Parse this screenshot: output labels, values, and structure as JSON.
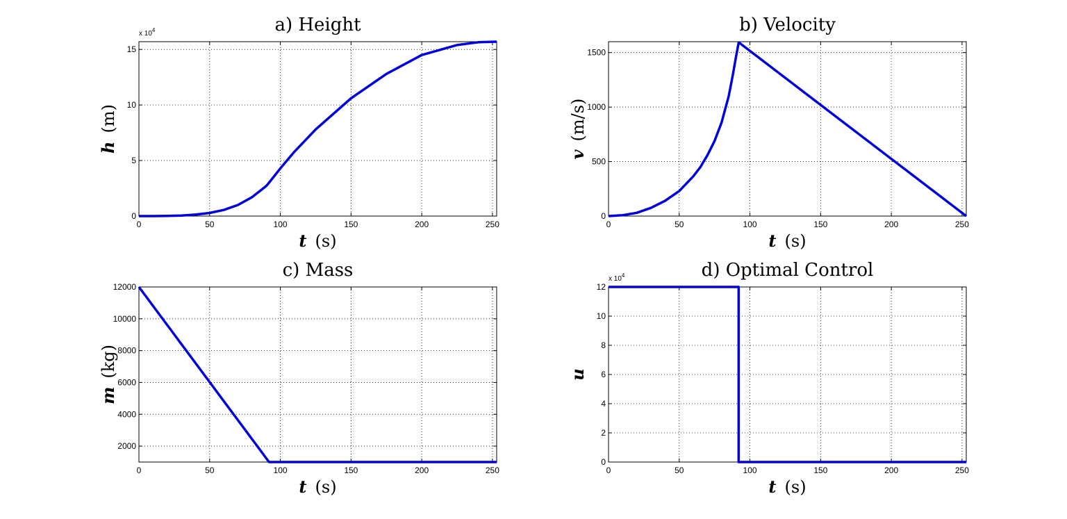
{
  "chart_data": [
    {
      "type": "line",
      "title": "a) Height",
      "xlabel_var": "t",
      "xlabel_unit": "(s)",
      "ylabel_var": "h",
      "ylabel_unit": "(m)",
      "y_exponent": "x 10",
      "y_exponent_power": "4",
      "xlim": [
        0,
        253
      ],
      "ylim": [
        0,
        15.7
      ],
      "xticks": [
        0,
        50,
        100,
        150,
        200,
        250
      ],
      "xtick_labels": [
        "0",
        "50",
        "100",
        "150",
        "200",
        "250"
      ],
      "yticks": [
        0,
        5,
        10,
        15
      ],
      "ytick_labels": [
        "0",
        "5",
        "10",
        "15"
      ],
      "grid": true,
      "color": "#0000dd",
      "series": [
        {
          "x": [
            0,
            10,
            20,
            30,
            40,
            50,
            60,
            70,
            80,
            90,
            92,
            100,
            110,
            125,
            150,
            175,
            200,
            225,
            240,
            253
          ],
          "y": [
            0,
            0,
            0.02,
            0.05,
            0.13,
            0.28,
            0.55,
            1.0,
            1.7,
            2.7,
            3.0,
            4.3,
            5.8,
            7.8,
            10.6,
            12.8,
            14.5,
            15.4,
            15.65,
            15.7
          ]
        }
      ]
    },
    {
      "type": "line",
      "title": "b) Velocity",
      "xlabel_var": "t",
      "xlabel_unit": "(s)",
      "ylabel_var": "v",
      "ylabel_unit": "(m/s)",
      "xlim": [
        0,
        253
      ],
      "ylim": [
        0,
        1600
      ],
      "xticks": [
        0,
        50,
        100,
        150,
        200,
        250
      ],
      "xtick_labels": [
        "0",
        "50",
        "100",
        "150",
        "200",
        "250"
      ],
      "yticks": [
        0,
        500,
        1000,
        1500
      ],
      "ytick_labels": [
        "0",
        "500",
        "1000",
        "1500"
      ],
      "grid": true,
      "color": "#0000dd",
      "series": [
        {
          "x": [
            0,
            10,
            20,
            30,
            40,
            50,
            60,
            65,
            70,
            75,
            80,
            85,
            88,
            90,
            92,
            93,
            253
          ],
          "y": [
            0,
            8,
            30,
            75,
            140,
            230,
            365,
            450,
            560,
            690,
            860,
            1100,
            1300,
            1450,
            1590,
            1585,
            0
          ]
        }
      ]
    },
    {
      "type": "line",
      "title": "c) Mass",
      "xlabel_var": "t",
      "xlabel_unit": "(s)",
      "ylabel_var": "m",
      "ylabel_unit": "(kg)",
      "xlim": [
        0,
        253
      ],
      "ylim": [
        1000,
        12000
      ],
      "xticks": [
        0,
        50,
        100,
        150,
        200,
        250
      ],
      "xtick_labels": [
        "0",
        "50",
        "100",
        "150",
        "200",
        "250"
      ],
      "yticks": [
        2000,
        4000,
        6000,
        8000,
        10000,
        12000
      ],
      "ytick_labels": [
        "2000",
        "4000",
        "6000",
        "8000",
        "10000",
        "12000"
      ],
      "grid": true,
      "color": "#0000dd",
      "series": [
        {
          "x": [
            0,
            92,
            253
          ],
          "y": [
            12000,
            1000,
            1000
          ]
        }
      ]
    },
    {
      "type": "line",
      "title": "d) Optimal Control",
      "xlabel_var": "t",
      "xlabel_unit": "(s)",
      "ylabel_var": "u",
      "ylabel_unit": "",
      "y_exponent": "x 10",
      "y_exponent_power": "4",
      "xlim": [
        0,
        253
      ],
      "ylim": [
        0,
        12
      ],
      "xticks": [
        0,
        50,
        100,
        150,
        200,
        250
      ],
      "xtick_labels": [
        "0",
        "50",
        "100",
        "150",
        "200",
        "250"
      ],
      "yticks": [
        0,
        2,
        4,
        6,
        8,
        10,
        12
      ],
      "ytick_labels": [
        "0",
        "2",
        "4",
        "6",
        "8",
        "10",
        "12"
      ],
      "grid": true,
      "color": "#0000dd",
      "series": [
        {
          "x": [
            0,
            92,
            92,
            253
          ],
          "y": [
            12,
            12,
            0,
            0
          ]
        }
      ]
    }
  ]
}
